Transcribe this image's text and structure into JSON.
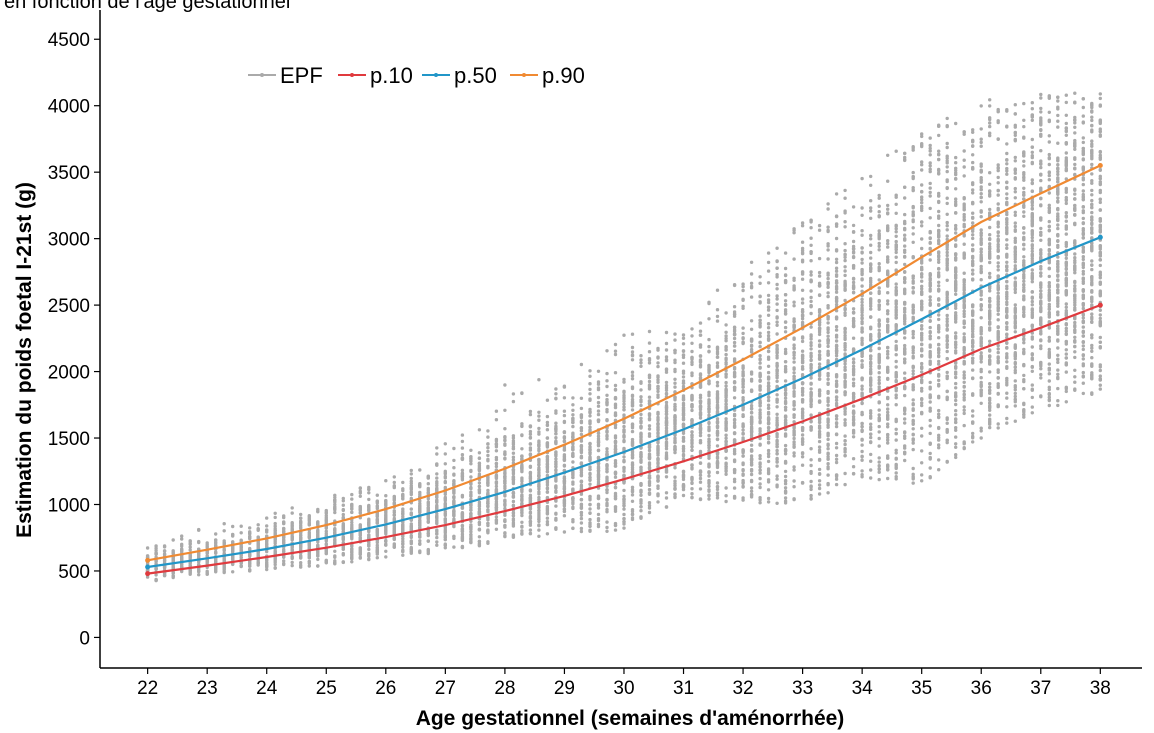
{
  "page_title": "en fonction de l'âge gestationnel",
  "chart_data": {
    "type": "scatter",
    "title": "en fonction de l'âge gestationnel",
    "xlabel": "Age gestationnel (semaines d'aménorrhée)",
    "ylabel": "Estimation du poids foetal I-21st (g)",
    "xlim": [
      21.2,
      38.7
    ],
    "ylim": [
      -230,
      4720
    ],
    "x_ticks": [
      22,
      23,
      24,
      25,
      26,
      27,
      28,
      29,
      30,
      31,
      32,
      33,
      34,
      35,
      36,
      37,
      38
    ],
    "y_ticks": [
      0,
      500,
      1000,
      1500,
      2000,
      2500,
      3000,
      3500,
      4000,
      4500
    ],
    "grid": false,
    "legend_position": "top-left",
    "colors": {
      "EPF": "#aaaaaa",
      "p.10": "#e03a3e",
      "p.50": "#2196c8",
      "p.90": "#f08a32"
    },
    "scatter_envelope": {
      "name": "EPF",
      "x": [
        22,
        23,
        24,
        25,
        26,
        27,
        28,
        29,
        30,
        31,
        32,
        33,
        34,
        35,
        36,
        37,
        38
      ],
      "low": [
        420,
        470,
        510,
        540,
        600,
        640,
        720,
        790,
        800,
        1050,
        1000,
        1000,
        1200,
        1150,
        1500,
        1700,
        1850
      ],
      "high": [
        690,
        880,
        920,
        1080,
        1180,
        1500,
        1900,
        2000,
        2280,
        2400,
        2800,
        3200,
        3500,
        3820,
        4050,
        4100,
        4100
      ]
    },
    "series": [
      {
        "name": "p.10",
        "x": [
          22,
          23,
          24,
          25,
          26,
          27,
          28,
          29,
          30,
          31,
          32,
          33,
          34,
          35,
          36,
          37,
          38
        ],
        "values": [
          480,
          540,
          605,
          675,
          755,
          845,
          950,
          1065,
          1190,
          1325,
          1470,
          1625,
          1795,
          1975,
          2170,
          2330,
          2500
        ]
      },
      {
        "name": "p.50",
        "x": [
          22,
          23,
          24,
          25,
          26,
          27,
          28,
          29,
          30,
          31,
          32,
          33,
          34,
          35,
          36,
          37,
          38
        ],
        "values": [
          530,
          595,
          665,
          750,
          850,
          965,
          1095,
          1240,
          1395,
          1565,
          1750,
          1950,
          2165,
          2395,
          2630,
          2830,
          3010
        ]
      },
      {
        "name": "p.90",
        "x": [
          22,
          23,
          24,
          25,
          26,
          27,
          28,
          29,
          30,
          31,
          32,
          33,
          34,
          35,
          36,
          37,
          38
        ],
        "values": [
          580,
          660,
          745,
          845,
          965,
          1105,
          1270,
          1450,
          1645,
          1860,
          2090,
          2330,
          2585,
          2860,
          3125,
          3340,
          3550
        ]
      }
    ],
    "legend": [
      "EPF",
      "p.10",
      "p.50",
      "p.90"
    ]
  }
}
